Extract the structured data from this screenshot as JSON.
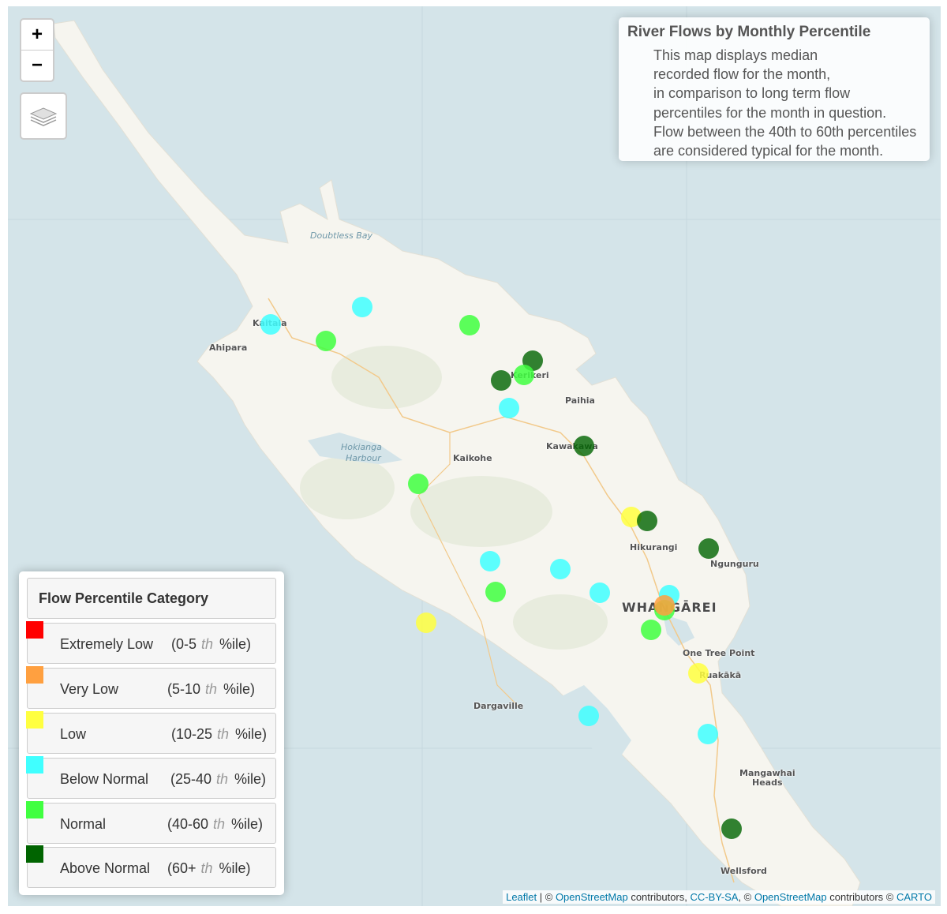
{
  "zoom": {
    "in_label": "+",
    "out_label": "−"
  },
  "layers_control": {
    "icon": "layers-icon"
  },
  "info": {
    "title": "River Flows by Monthly Percentile",
    "body": [
      "This map displays median",
      "recorded flow for the month,",
      "in comparison to long term flow",
      "percentiles for the month in question.",
      "Flow between the 40th to 60th percentiles",
      "are considered typical for the month."
    ]
  },
  "legend": {
    "title": "Flow Percentile Category",
    "items": [
      {
        "name": "Extremely Low",
        "lo": "(0-5",
        "hi": "%ile)",
        "color": "#ff0000"
      },
      {
        "name": "Very Low",
        "lo": "(5-10",
        "hi": "%ile)",
        "color": "#ffa040"
      },
      {
        "name": "Low",
        "lo": "(10-25",
        "hi": "%ile)",
        "color": "#ffff40"
      },
      {
        "name": "Below Normal",
        "lo": "(25-40",
        "hi": "%ile)",
        "color": "#40ffff"
      },
      {
        "name": "Normal",
        "lo": "(40-60",
        "hi": "%ile)",
        "color": "#40ff40"
      },
      {
        "name": "Above Normal",
        "lo": "(60+",
        "hi": "%ile)",
        "color": "#006400"
      }
    ],
    "suffix": "th"
  },
  "places": {
    "kaitaia": "Kaitaia",
    "ahipara": "Ahipara",
    "kerikeri": "Kerikeri",
    "paihia": "Paihia",
    "kawakawa": "Kawakawa",
    "kaikohe": "Kaikohe",
    "hikurangi": "Hikurangi",
    "ngunguru": "Ngunguru",
    "whangarei": "WHANGĀREI",
    "one_tree_point": "One Tree Point",
    "ruakaka": "Ruakākā",
    "dargaville": "Dargaville",
    "mangawhai_1": "Mangawhai",
    "mangawhai_2": "Heads",
    "wellsford": "Wellsford"
  },
  "water_labels": {
    "doubtless_bay": "Doubtless Bay",
    "hokianga_1": "Hokianga",
    "hokianga_2": "Harbour"
  },
  "sites": [
    {
      "category": "Below Normal"
    },
    {
      "category": "Below Normal"
    },
    {
      "category": "Normal"
    },
    {
      "category": "Normal"
    },
    {
      "category": "Above Normal"
    },
    {
      "category": "Normal"
    },
    {
      "category": "Above Normal"
    },
    {
      "category": "Below Normal"
    },
    {
      "category": "Above Normal"
    },
    {
      "category": "Normal"
    },
    {
      "category": "Low"
    },
    {
      "category": "Above Normal"
    },
    {
      "category": "Above Normal"
    },
    {
      "category": "Below Normal"
    },
    {
      "category": "Below Normal"
    },
    {
      "category": "Normal"
    },
    {
      "category": "Below Normal"
    },
    {
      "category": "Below Normal"
    },
    {
      "category": "Normal"
    },
    {
      "category": "Very Low"
    },
    {
      "category": "Normal"
    },
    {
      "category": "Low"
    },
    {
      "category": "Low"
    },
    {
      "category": "Below Normal"
    },
    {
      "category": "Below Normal"
    },
    {
      "category": "Above Normal"
    }
  ],
  "attribution": {
    "leaflet": "Leaflet",
    "sep1": " | © ",
    "osm": "OpenStreetMap",
    "contrib1": " contributors, ",
    "ccbysa": "CC-BY-SA",
    "sep2": ", © ",
    "osm2": "OpenStreetMap",
    "contrib2": " contributors © ",
    "carto": "CARTO"
  }
}
